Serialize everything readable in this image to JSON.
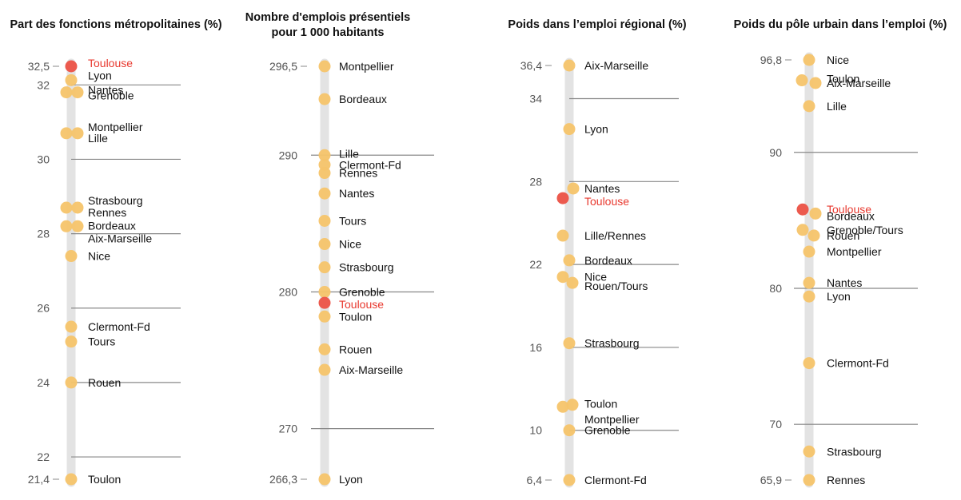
{
  "colors": {
    "point": "#f6c46a",
    "highlight": "#ec5a4e",
    "highlight_text": "#e8392f",
    "track": "#e3e3e3",
    "gridline": "#888888"
  },
  "chart_data": [
    {
      "type": "scatter",
      "title": "Part des fonctions métropolitaines (%)",
      "xlabel": "",
      "ylabel": "",
      "ylim": [
        21.4,
        32.5
      ],
      "ticks": [
        {
          "value": 32.5,
          "label": "32,5"
        },
        {
          "value": 32,
          "label": "32"
        },
        {
          "value": 30,
          "label": "30"
        },
        {
          "value": 28,
          "label": "28"
        },
        {
          "value": 26,
          "label": "26"
        },
        {
          "value": 24,
          "label": "24"
        },
        {
          "value": 22,
          "label": "22"
        },
        {
          "value": 21.4,
          "label": "21,4"
        }
      ],
      "gridlines": [
        32,
        30,
        28,
        26,
        24,
        22
      ],
      "points": [
        {
          "label": "Toulouse",
          "value": 32.5,
          "highlight": true
        },
        {
          "label": "Lyon",
          "value": 32.3
        },
        {
          "label": "Nantes",
          "value": 31.8
        },
        {
          "label": "Grenoble",
          "value": 31.8
        },
        {
          "label": "Montpellier",
          "value": 30.7
        },
        {
          "label": "Lille",
          "value": 30.7
        },
        {
          "label": "Strasbourg",
          "value": 28.7
        },
        {
          "label": "Rennes",
          "value": 28.7
        },
        {
          "label": "Bordeaux",
          "value": 28.2
        },
        {
          "label": "Aix-Marseille",
          "value": 28.2
        },
        {
          "label": "Nice",
          "value": 27.4
        },
        {
          "label": "Clermont-Fd",
          "value": 25.5
        },
        {
          "label": "Tours",
          "value": 25.1
        },
        {
          "label": "Rouen",
          "value": 24.0
        },
        {
          "label": "Toulon",
          "value": 21.4
        }
      ]
    },
    {
      "type": "scatter",
      "title": "Nombre d'emplois présentiels\npour 1 000 habitants",
      "xlabel": "",
      "ylabel": "",
      "ylim": [
        266.3,
        296.5
      ],
      "ticks": [
        {
          "value": 296.5,
          "label": "296,5"
        },
        {
          "value": 290,
          "label": "290"
        },
        {
          "value": 280,
          "label": "280"
        },
        {
          "value": 270,
          "label": "270"
        },
        {
          "value": 266.3,
          "label": "266,3"
        }
      ],
      "gridlines": [
        290,
        280,
        270
      ],
      "points": [
        {
          "label": "Montpellier",
          "value": 296.5
        },
        {
          "label": "Bordeaux",
          "value": 294.1
        },
        {
          "label": "Lille",
          "value": 290.0
        },
        {
          "label": "Clermont-Fd",
          "value": 289.3
        },
        {
          "label": "Rennes",
          "value": 288.7
        },
        {
          "label": "Nantes",
          "value": 287.2
        },
        {
          "label": "Tours",
          "value": 285.2
        },
        {
          "label": "Nice",
          "value": 283.5
        },
        {
          "label": "Strasbourg",
          "value": 281.8
        },
        {
          "label": "Grenoble",
          "value": 280.0
        },
        {
          "label": "Toulouse",
          "value": 279.2,
          "highlight": true
        },
        {
          "label": "Toulon",
          "value": 278.2
        },
        {
          "label": "Rouen",
          "value": 275.8
        },
        {
          "label": "Aix-Marseille",
          "value": 274.3
        },
        {
          "label": "Lyon",
          "value": 266.3
        }
      ]
    },
    {
      "type": "scatter",
      "title": "Poids dans l’emploi régional (%)",
      "xlabel": "",
      "ylabel": "",
      "ylim": [
        6.4,
        36.4
      ],
      "ticks": [
        {
          "value": 36.4,
          "label": "36,4"
        },
        {
          "value": 34,
          "label": "34"
        },
        {
          "value": 28,
          "label": "28"
        },
        {
          "value": 22,
          "label": "22"
        },
        {
          "value": 16,
          "label": "16"
        },
        {
          "value": 10,
          "label": "10"
        },
        {
          "value": 6.4,
          "label": "6,4"
        }
      ],
      "gridlines": [
        34,
        28,
        22,
        16,
        10
      ],
      "points": [
        {
          "label": "Aix-Marseille",
          "value": 36.4
        },
        {
          "label": "Lyon",
          "value": 31.8
        },
        {
          "label": "Nantes",
          "value": 27.5
        },
        {
          "label": "Toulouse",
          "value": 26.8,
          "highlight": true
        },
        {
          "label": "Lille/Rennes",
          "value": 24.2
        },
        {
          "label": "Bordeaux",
          "value": 22.3
        },
        {
          "label": "Nice",
          "value": 21.1
        },
        {
          "label": "Rouen/Tours",
          "value": 20.9
        },
        {
          "label": "Strasbourg",
          "value": 16.3
        },
        {
          "label": "Toulon",
          "value": 11.7
        },
        {
          "label": "Montpellier",
          "value": 11.5
        },
        {
          "label": "Grenoble",
          "value": 10.0
        },
        {
          "label": "Clermont-Fd",
          "value": 6.4
        }
      ]
    },
    {
      "type": "scatter",
      "title": "Poids du pôle urbain dans l’emploi (%)",
      "xlabel": "",
      "ylabel": "",
      "ylim": [
        65.9,
        96.8
      ],
      "ticks": [
        {
          "value": 96.8,
          "label": "96,8"
        },
        {
          "value": 90,
          "label": "90"
        },
        {
          "value": 80,
          "label": "80"
        },
        {
          "value": 70,
          "label": "70"
        },
        {
          "value": 65.9,
          "label": "65,9"
        }
      ],
      "gridlines": [
        90,
        80,
        70
      ],
      "points": [
        {
          "label": "Nice",
          "value": 96.8
        },
        {
          "label": "Toulon",
          "value": 95.3
        },
        {
          "label": "Aix-Marseille",
          "value": 95.1
        },
        {
          "label": "Lille",
          "value": 93.4
        },
        {
          "label": "Toulouse",
          "value": 85.8,
          "highlight": true
        },
        {
          "label": "Bordeaux",
          "value": 85.5
        },
        {
          "label": "Grenoble/Tours",
          "value": 84.3
        },
        {
          "label": "Rouen",
          "value": 84.0
        },
        {
          "label": "Montpellier",
          "value": 82.7
        },
        {
          "label": "Nantes",
          "value": 80.4
        },
        {
          "label": "Lyon",
          "value": 79.4
        },
        {
          "label": "Clermont-Fd",
          "value": 74.5
        },
        {
          "label": "Strasbourg",
          "value": 68.0
        },
        {
          "label": "Rennes",
          "value": 65.9
        }
      ]
    }
  ]
}
